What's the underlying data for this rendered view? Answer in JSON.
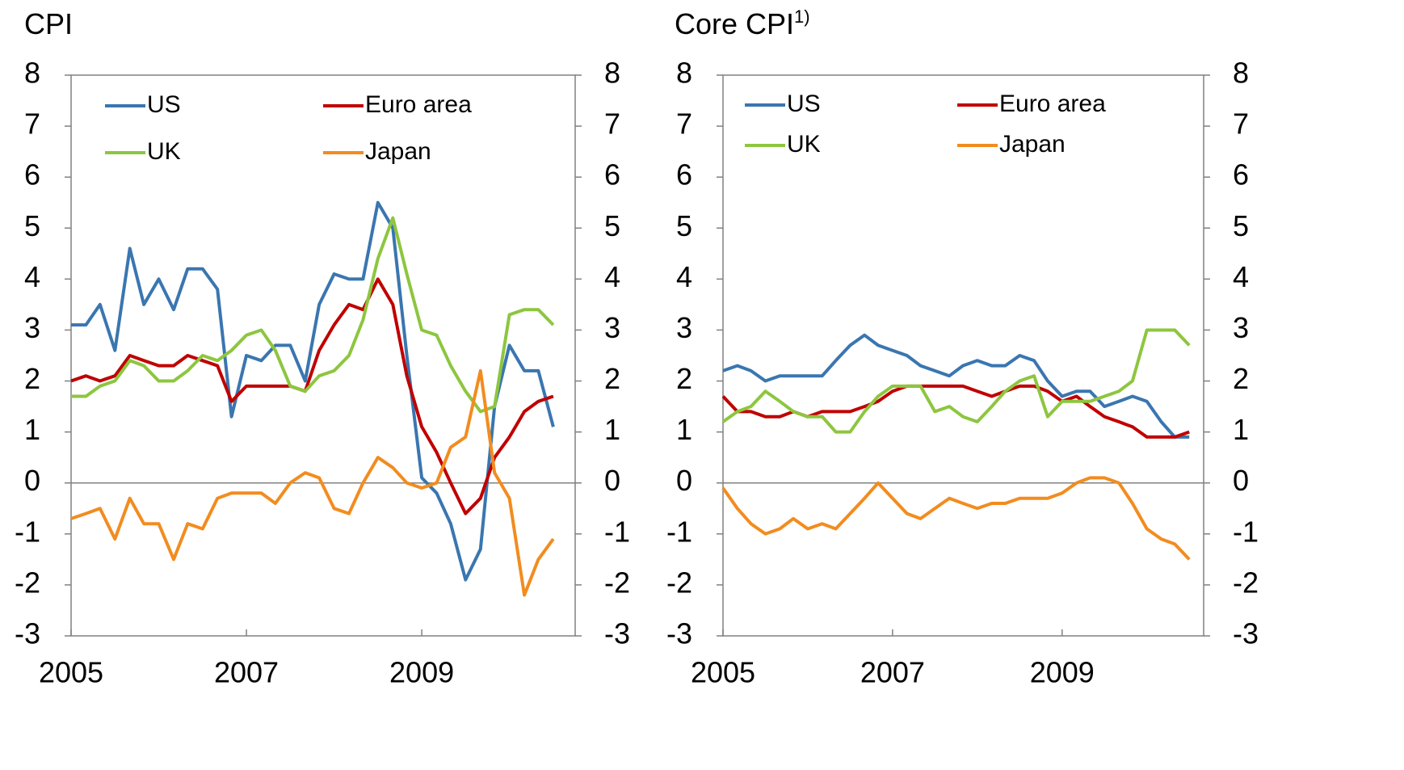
{
  "chart_data": [
    {
      "type": "line",
      "title": "CPI",
      "x": [
        2005,
        2005.17,
        2005.33,
        2005.5,
        2005.67,
        2005.83,
        2006,
        2006.17,
        2006.33,
        2006.5,
        2006.67,
        2006.83,
        2007,
        2007.17,
        2007.33,
        2007.5,
        2007.67,
        2007.83,
        2008,
        2008.17,
        2008.33,
        2008.5,
        2008.67,
        2008.83,
        2009,
        2009.17,
        2009.33,
        2009.5,
        2009.67,
        2009.83,
        2010,
        2010.17,
        2010.33,
        2010.5
      ],
      "series": [
        {
          "name": "US",
          "color": "#3a76b0",
          "values": [
            3.1,
            3.1,
            3.5,
            2.6,
            4.6,
            3.5,
            4.0,
            3.4,
            4.2,
            4.2,
            3.8,
            1.3,
            2.5,
            2.4,
            2.7,
            2.7,
            2.0,
            3.5,
            4.1,
            4.0,
            4.0,
            5.5,
            5.0,
            2.5,
            0.1,
            -0.2,
            -0.8,
            -1.9,
            -1.3,
            1.5,
            2.7,
            2.2,
            2.2,
            1.1
          ]
        },
        {
          "name": "Euro area",
          "color": "#c00000",
          "values": [
            2.0,
            2.1,
            2.0,
            2.1,
            2.5,
            2.4,
            2.3,
            2.3,
            2.5,
            2.4,
            2.3,
            1.6,
            1.9,
            1.9,
            1.9,
            1.9,
            1.8,
            2.6,
            3.1,
            3.5,
            3.4,
            4.0,
            3.5,
            2.1,
            1.1,
            0.6,
            0.0,
            -0.6,
            -0.3,
            0.5,
            0.9,
            1.4,
            1.6,
            1.7
          ]
        },
        {
          "name": "UK",
          "color": "#8dc63f",
          "values": [
            1.7,
            1.7,
            1.9,
            2.0,
            2.4,
            2.3,
            2.0,
            2.0,
            2.2,
            2.5,
            2.4,
            2.6,
            2.9,
            3.0,
            2.6,
            1.9,
            1.8,
            2.1,
            2.2,
            2.5,
            3.2,
            4.4,
            5.2,
            4.1,
            3.0,
            2.9,
            2.3,
            1.8,
            1.4,
            1.5,
            3.3,
            3.4,
            3.4,
            3.1
          ]
        },
        {
          "name": "Japan",
          "color": "#f28c1f",
          "values": [
            -0.7,
            -0.6,
            -0.5,
            -1.1,
            -0.3,
            -0.8,
            -0.8,
            -1.5,
            -0.8,
            -0.9,
            -0.3,
            -0.2,
            -0.2,
            -0.2,
            -0.4,
            0.0,
            0.2,
            0.1,
            -0.5,
            -0.6,
            0.0,
            0.5,
            0.3,
            0.0,
            -0.1,
            0.0,
            0.7,
            0.9,
            2.2,
            0.2,
            -0.3,
            -2.2,
            -1.5,
            -1.1
          ]
        }
      ],
      "xlim": [
        2005,
        2010.75
      ],
      "xticks": [
        2005,
        2007,
        2009
      ],
      "ylim": [
        -3,
        8
      ],
      "yticks": [
        -3,
        -2,
        -1,
        0,
        1,
        2,
        3,
        4,
        5,
        6,
        7,
        8
      ],
      "y2lim": [
        -3,
        8
      ],
      "y2ticks": [
        -3,
        -2,
        -1,
        0,
        1,
        2,
        3,
        4,
        5,
        6,
        7,
        8
      ]
    },
    {
      "type": "line",
      "title": "Core CPI",
      "title_note": "1)",
      "x": [
        2005,
        2005.17,
        2005.33,
        2005.5,
        2005.67,
        2005.83,
        2006,
        2006.17,
        2006.33,
        2006.5,
        2006.67,
        2006.83,
        2007,
        2007.17,
        2007.33,
        2007.5,
        2007.67,
        2007.83,
        2008,
        2008.17,
        2008.33,
        2008.5,
        2008.67,
        2008.83,
        2009,
        2009.17,
        2009.33,
        2009.5,
        2009.67,
        2009.83,
        2010,
        2010.17,
        2010.33,
        2010.5
      ],
      "series": [
        {
          "name": "US",
          "color": "#3a76b0",
          "values": [
            2.2,
            2.3,
            2.2,
            2.0,
            2.1,
            2.1,
            2.1,
            2.1,
            2.4,
            2.7,
            2.9,
            2.7,
            2.6,
            2.5,
            2.3,
            2.2,
            2.1,
            2.3,
            2.4,
            2.3,
            2.3,
            2.5,
            2.4,
            2.0,
            1.7,
            1.8,
            1.8,
            1.5,
            1.6,
            1.7,
            1.6,
            1.2,
            0.9,
            0.9
          ]
        },
        {
          "name": "Euro area",
          "color": "#c00000",
          "values": [
            1.7,
            1.4,
            1.4,
            1.3,
            1.3,
            1.4,
            1.3,
            1.4,
            1.4,
            1.4,
            1.5,
            1.6,
            1.8,
            1.9,
            1.9,
            1.9,
            1.9,
            1.9,
            1.8,
            1.7,
            1.8,
            1.9,
            1.9,
            1.8,
            1.6,
            1.7,
            1.5,
            1.3,
            1.2,
            1.1,
            0.9,
            0.9,
            0.9,
            1.0
          ]
        },
        {
          "name": "UK",
          "color": "#8dc63f",
          "values": [
            1.2,
            1.4,
            1.5,
            1.8,
            1.6,
            1.4,
            1.3,
            1.3,
            1.0,
            1.0,
            1.4,
            1.7,
            1.9,
            1.9,
            1.9,
            1.4,
            1.5,
            1.3,
            1.2,
            1.5,
            1.8,
            2.0,
            2.1,
            1.3,
            1.6,
            1.6,
            1.6,
            1.7,
            1.8,
            2.0,
            3.0,
            3.0,
            3.0,
            2.7
          ]
        },
        {
          "name": "Japan",
          "color": "#f28c1f",
          "values": [
            -0.1,
            -0.5,
            -0.8,
            -1.0,
            -0.9,
            -0.7,
            -0.9,
            -0.8,
            -0.9,
            -0.6,
            -0.3,
            0.0,
            -0.3,
            -0.6,
            -0.7,
            -0.5,
            -0.3,
            -0.4,
            -0.5,
            -0.4,
            -0.4,
            -0.3,
            -0.3,
            -0.3,
            -0.2,
            0.0,
            0.1,
            0.1,
            0.0,
            -0.4,
            -0.9,
            -1.1,
            -1.2,
            -1.5
          ]
        }
      ],
      "xlim": [
        2005,
        2010.67
      ],
      "xticks": [
        2005,
        2007,
        2009
      ],
      "ylim": [
        -3,
        8
      ],
      "yticks": [
        -3,
        -2,
        -1,
        0,
        1,
        2,
        3,
        4,
        5,
        6,
        7,
        8
      ],
      "y2lim": [
        -3,
        8
      ],
      "y2ticks": [
        -3,
        -2,
        -1,
        0,
        1,
        2,
        3,
        4,
        5,
        6,
        7,
        8
      ]
    }
  ]
}
